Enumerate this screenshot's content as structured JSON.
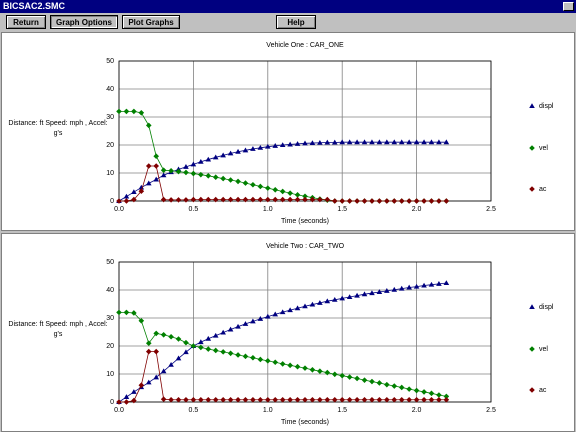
{
  "window": {
    "title": "BICSAC2.SMC"
  },
  "toolbar": {
    "buttons": [
      "Return",
      "Graph Options",
      "Plot Graphs",
      "Help"
    ]
  },
  "chart_data": [
    {
      "type": "line",
      "title": "Vehicle One : CAR_ONE",
      "x_label": "Time (seconds)",
      "y_label": "Distance: ft Speed: mph , Accel: g's",
      "x": [
        0,
        0.05,
        0.1,
        0.15,
        0.2,
        0.25,
        0.3,
        0.35,
        0.4,
        0.45,
        0.5,
        0.55,
        0.6,
        0.65,
        0.7,
        0.75,
        0.8,
        0.85,
        0.9,
        0.95,
        1.0,
        1.05,
        1.1,
        1.15,
        1.2,
        1.25,
        1.3,
        1.35,
        1.4,
        1.45,
        1.5,
        1.55,
        1.6,
        1.65,
        1.7,
        1.75,
        1.8,
        1.85,
        1.9,
        1.95,
        2.0,
        2.05,
        2.1,
        2.15,
        2.2
      ],
      "xlim": [
        0,
        2.5
      ],
      "xticks": [
        {
          "value": 0,
          "label": "0.0"
        },
        {
          "value": 0.5,
          "label": "0.5"
        },
        {
          "value": 1,
          "label": "1.0"
        },
        {
          "value": 1.5,
          "label": "1.5"
        },
        {
          "value": 2,
          "label": "2.0"
        },
        {
          "value": 2.5,
          "label": "2.5"
        }
      ],
      "ylim": [
        0,
        50
      ],
      "yticks": [
        0,
        10,
        20,
        30,
        40,
        50
      ],
      "grid": true,
      "series": [
        {
          "name": "displ",
          "color": "#000080",
          "marker": "triangle",
          "values": [
            0,
            1.6,
            3.2,
            4.8,
            6.3,
            7.7,
            9.2,
            10.3,
            11.3,
            12.2,
            13.1,
            14.0,
            14.8,
            15.6,
            16.3,
            17.0,
            17.6,
            18.1,
            18.6,
            19.0,
            19.4,
            19.7,
            20.0,
            20.2,
            20.4,
            20.6,
            20.7,
            20.8,
            20.9,
            20.9,
            21,
            21,
            21,
            21,
            21,
            21,
            21,
            21,
            21,
            21,
            21,
            21,
            21,
            21,
            21
          ]
        },
        {
          "name": "vel",
          "color": "#008000",
          "marker": "diamond",
          "values": [
            32,
            32,
            32,
            31.5,
            27,
            16,
            11,
            10.8,
            10.5,
            10.2,
            9.8,
            9.4,
            9.0,
            8.5,
            8.0,
            7.5,
            7.0,
            6.4,
            5.8,
            5.2,
            4.6,
            4.0,
            3.4,
            2.8,
            2.2,
            1.7,
            1.2,
            0.7,
            0.3,
            0,
            0,
            0,
            0,
            0,
            0,
            0,
            0,
            0,
            0,
            0,
            0,
            0,
            0,
            0,
            0
          ]
        },
        {
          "name": "ac",
          "color": "#800000",
          "marker": "diamond",
          "values": [
            0,
            0,
            0.5,
            3.5,
            12.5,
            12.5,
            0.5,
            0.4,
            0.4,
            0.4,
            0.5,
            0.5,
            0.5,
            0.5,
            0.5,
            0.5,
            0.5,
            0.5,
            0.5,
            0.5,
            0.5,
            0.5,
            0.5,
            0.5,
            0.5,
            0.5,
            0.5,
            0.5,
            0.5,
            0,
            0,
            0,
            0,
            0,
            0,
            0,
            0,
            0,
            0,
            0,
            0,
            0,
            0,
            0,
            0
          ]
        }
      ]
    },
    {
      "type": "line",
      "title": "Vehicle Two : CAR_TWO",
      "x_label": "Time (seconds)",
      "y_label": "Distance: ft Speed: mph , Accel: g's",
      "x": [
        0,
        0.05,
        0.1,
        0.15,
        0.2,
        0.25,
        0.3,
        0.35,
        0.4,
        0.45,
        0.5,
        0.55,
        0.6,
        0.65,
        0.7,
        0.75,
        0.8,
        0.85,
        0.9,
        0.95,
        1.0,
        1.05,
        1.1,
        1.15,
        1.2,
        1.25,
        1.3,
        1.35,
        1.4,
        1.45,
        1.5,
        1.55,
        1.6,
        1.65,
        1.7,
        1.75,
        1.8,
        1.85,
        1.9,
        1.95,
        2.0,
        2.05,
        2.1,
        2.15,
        2.2
      ],
      "xlim": [
        0,
        2.5
      ],
      "xticks": [
        {
          "value": 0,
          "label": "0.0"
        },
        {
          "value": 0.5,
          "label": "0.5"
        },
        {
          "value": 1,
          "label": "1.0"
        },
        {
          "value": 1.5,
          "label": "1.5"
        },
        {
          "value": 2,
          "label": "2.0"
        },
        {
          "value": 2.5,
          "label": "2.5"
        }
      ],
      "ylim": [
        0,
        50
      ],
      "yticks": [
        0,
        10,
        20,
        30,
        40,
        50
      ],
      "grid": true,
      "series": [
        {
          "name": "displ",
          "color": "#000080",
          "marker": "triangle",
          "values": [
            0,
            1.8,
            3.6,
            5.3,
            7,
            8.8,
            11,
            13.3,
            15.6,
            17.8,
            20,
            21.4,
            22.6,
            23.7,
            24.8,
            25.9,
            26.9,
            27.9,
            28.8,
            29.7,
            30.5,
            31.3,
            32.1,
            32.8,
            33.5,
            34.2,
            34.8,
            35.4,
            36,
            36.5,
            37,
            37.5,
            38,
            38.5,
            38.9,
            39.3,
            39.7,
            40.1,
            40.5,
            40.9,
            41.2,
            41.6,
            41.9,
            42.2,
            42.5
          ]
        },
        {
          "name": "vel",
          "color": "#008000",
          "marker": "diamond",
          "values": [
            32,
            32,
            31.8,
            29,
            21,
            24.5,
            24,
            23.3,
            22.5,
            21.2,
            20,
            19.5,
            18.9,
            18.4,
            17.9,
            17.4,
            16.8,
            16.3,
            15.8,
            15.2,
            14.7,
            14.2,
            13.6,
            13.1,
            12.6,
            12.1,
            11.5,
            11,
            10.5,
            9.9,
            9.4,
            8.9,
            8.4,
            7.8,
            7.3,
            6.8,
            6.2,
            5.7,
            5.2,
            4.6,
            4.1,
            3.6,
            3.1,
            2.5,
            2
          ]
        },
        {
          "name": "ac",
          "color": "#800000",
          "marker": "diamond",
          "values": [
            0,
            0,
            0.5,
            6,
            18,
            18,
            1,
            0.8,
            0.8,
            0.8,
            0.8,
            0.8,
            0.8,
            0.8,
            0.8,
            0.8,
            0.8,
            0.8,
            0.8,
            0.8,
            0.8,
            0.8,
            0.8,
            0.8,
            0.8,
            0.8,
            0.8,
            0.8,
            0.8,
            0.8,
            0.8,
            0.8,
            0.8,
            0.8,
            0.8,
            0.8,
            0.8,
            0.8,
            0.8,
            0.8,
            0.8,
            0.8,
            0.8,
            0.8,
            0.8
          ]
        }
      ]
    }
  ]
}
